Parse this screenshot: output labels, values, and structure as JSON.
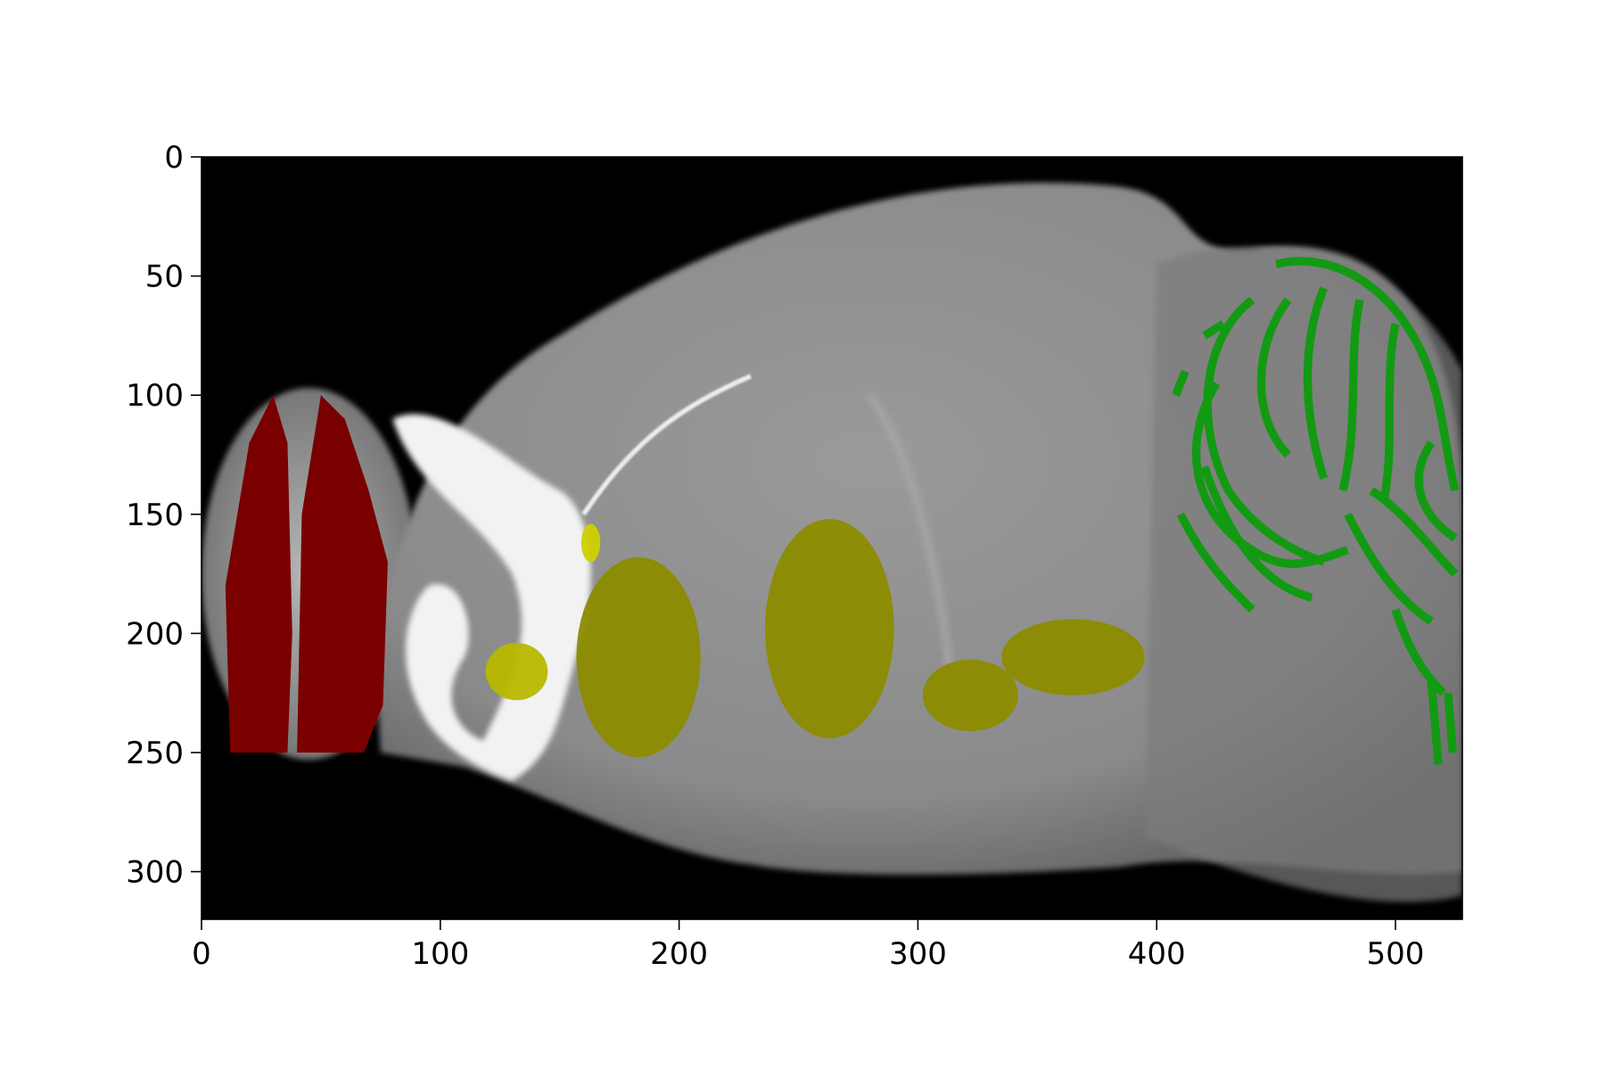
{
  "chart_data": {
    "type": "image",
    "xlim": [
      0,
      528
    ],
    "ylim": [
      320,
      0
    ],
    "xticks": [
      0,
      100,
      200,
      300,
      400,
      500
    ],
    "yticks": [
      0,
      50,
      100,
      150,
      200,
      250,
      300
    ]
  }
}
